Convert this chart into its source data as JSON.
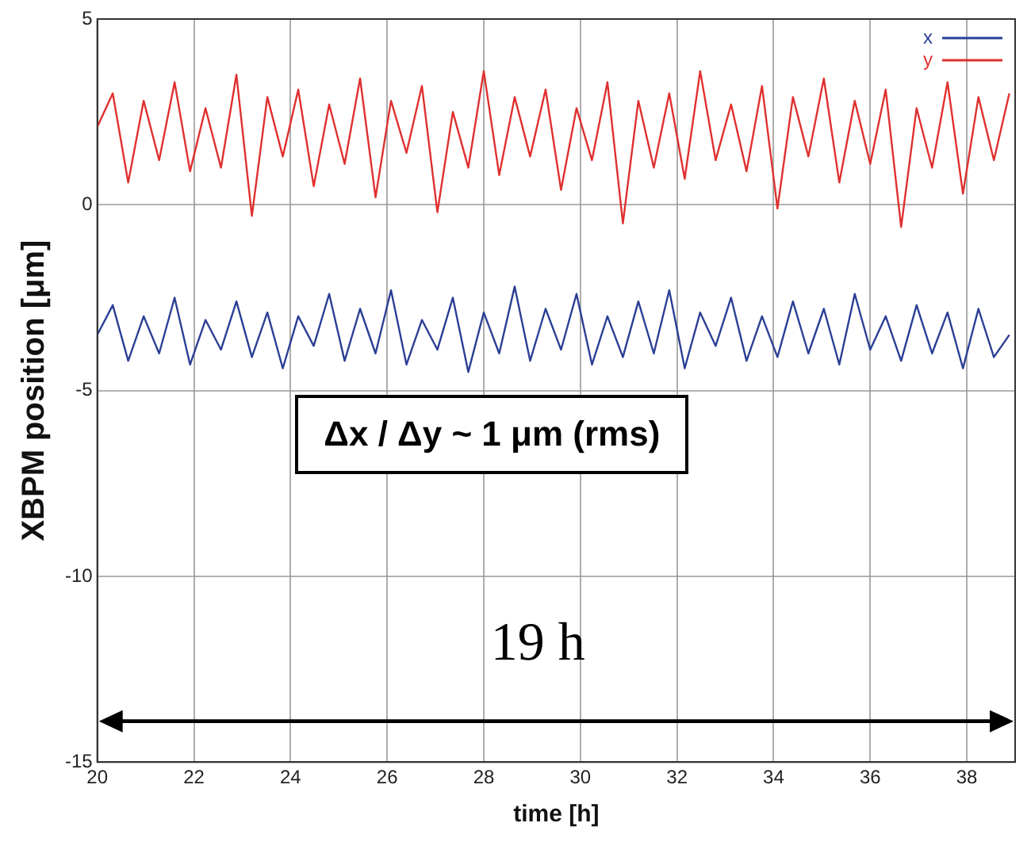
{
  "chart_data": {
    "type": "line",
    "xlabel": "time [h]",
    "ylabel": "XBPM position [μm]",
    "x": [
      20,
      20.32,
      20.64,
      20.96,
      21.28,
      21.6,
      21.92,
      22.24,
      22.56,
      22.88,
      23.2,
      23.52,
      23.84,
      24.16,
      24.48,
      24.8,
      25.12,
      25.44,
      25.76,
      26.08,
      26.4,
      26.72,
      27.04,
      27.36,
      27.68,
      28,
      28.32,
      28.64,
      28.96,
      29.28,
      29.6,
      29.92,
      30.24,
      30.56,
      30.88,
      31.2,
      31.52,
      31.84,
      32.16,
      32.48,
      32.8,
      33.12,
      33.44,
      33.76,
      34.08,
      34.4,
      34.72,
      35.04,
      35.36,
      35.68,
      36,
      36.32,
      36.64,
      36.96,
      37.28,
      37.6,
      37.92,
      38.24,
      38.56,
      38.88
    ],
    "series": [
      {
        "name": "x",
        "color": "#2b3f95",
        "values": [
          -3.5,
          -2.7,
          -4.2,
          -3.0,
          -4.0,
          -2.5,
          -4.3,
          -3.1,
          -3.9,
          -2.6,
          -4.1,
          -2.9,
          -4.4,
          -3.0,
          -3.8,
          -2.4,
          -4.2,
          -2.8,
          -4.0,
          -2.3,
          -4.3,
          -3.1,
          -3.9,
          -2.5,
          -4.5,
          -2.9,
          -4.0,
          -2.2,
          -4.2,
          -2.8,
          -3.9,
          -2.4,
          -4.3,
          -3.0,
          -4.1,
          -2.6,
          -4.0,
          -2.3,
          -4.4,
          -2.9,
          -3.8,
          -2.5,
          -4.2,
          -3.0,
          -4.1,
          -2.6,
          -4.0,
          -2.8,
          -4.3,
          -2.4,
          -3.9,
          -3.0,
          -4.2,
          -2.7,
          -4.0,
          -2.9,
          -4.4,
          -2.8,
          -4.1,
          -3.5
        ]
      },
      {
        "name": "y",
        "color": "#e03030",
        "values": [
          2.1,
          3.0,
          0.6,
          2.8,
          1.2,
          3.3,
          0.9,
          2.6,
          1.0,
          3.5,
          -0.3,
          2.9,
          1.3,
          3.1,
          0.5,
          2.7,
          1.1,
          3.4,
          0.2,
          2.8,
          1.4,
          3.2,
          -0.2,
          2.5,
          1.0,
          3.6,
          0.8,
          2.9,
          1.3,
          3.1,
          0.4,
          2.6,
          1.2,
          3.3,
          -0.5,
          2.8,
          1.0,
          3.0,
          0.7,
          3.6,
          1.2,
          2.7,
          0.9,
          3.2,
          -0.1,
          2.9,
          1.3,
          3.4,
          0.6,
          2.8,
          1.1,
          3.1,
          -0.6,
          2.6,
          1.0,
          3.3,
          0.3,
          2.9,
          1.2,
          3.0
        ]
      }
    ],
    "xlim": [
      20,
      39
    ],
    "xticks": [
      20,
      22,
      24,
      26,
      28,
      30,
      32,
      34,
      36,
      38
    ],
    "ylim": [
      -15,
      5
    ],
    "yticks": [
      -15,
      -10,
      -5,
      0,
      5
    ],
    "grid": true,
    "legend": "top right",
    "marker": "none",
    "line_style": "solid",
    "annotations": [
      "Δx / Δy ~ 1 μm (rms)",
      "19 h"
    ]
  }
}
